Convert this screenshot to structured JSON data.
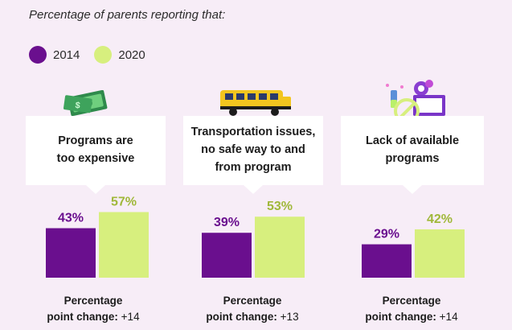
{
  "intro_text": "Percentage of parents reporting that:",
  "legend": [
    {
      "label": "2014",
      "color": "#6a0f8e"
    },
    {
      "label": "2020",
      "color": "#d7ef7e"
    }
  ],
  "colors": {
    "year2014": "#6a0f8e",
    "year2020": "#d7ef7e",
    "label2014": "#6a0f8e",
    "label2020": "#a0b83a"
  },
  "chart_data": {
    "type": "bar",
    "categories": [
      "Programs are\ntoo expensive",
      "Transportation issues,\nno safe way to and\nfrom program",
      "Lack of available\nprograms"
    ],
    "series": [
      {
        "name": "2014",
        "values": [
          43,
          39,
          29
        ]
      },
      {
        "name": "2020",
        "values": [
          57,
          53,
          42
        ]
      }
    ],
    "value_labels": {
      "2014": [
        "43%",
        "39%",
        "29%"
      ],
      "2020": [
        "57%",
        "53%",
        "42%"
      ]
    },
    "ylim": [
      0,
      60
    ],
    "legend_position": "top-left",
    "grid": false
  },
  "groups": [
    {
      "icon": "money-icon",
      "change_label": "Percentage\npoint change:",
      "change_value": "+14"
    },
    {
      "icon": "school-bus-icon",
      "change_label": "Percentage\npoint change:",
      "change_value": "+13"
    },
    {
      "icon": "no-programs-icon",
      "change_label": "Percentage\npoint change:",
      "change_value": "+14"
    }
  ]
}
